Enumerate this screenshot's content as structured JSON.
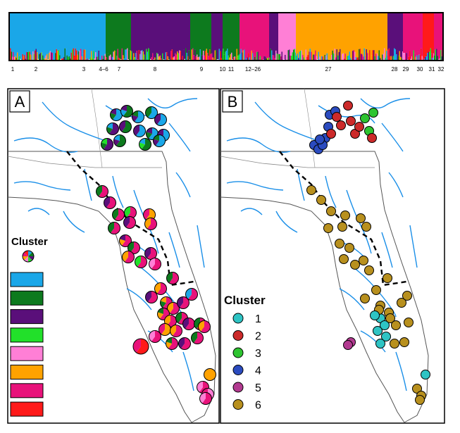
{
  "structure_bar": {
    "population_labels": [
      "1",
      "2",
      "3",
      "4–6",
      "7",
      "8",
      "9",
      "10",
      "11",
      "12–26",
      "27",
      "28",
      "29",
      "30",
      "31",
      "32"
    ]
  },
  "panels": [
    {
      "letter": "A",
      "legend_title": "Cluster"
    },
    {
      "letter": "B",
      "legend_title": "Cluster"
    }
  ],
  "clusters": [
    {
      "id": "1",
      "color_a": "#1aa7e8",
      "color_b": "#2ec4c4"
    },
    {
      "id": "2",
      "color_a": "#0d7a1e",
      "color_b": "#cc2a2a"
    },
    {
      "id": "3",
      "color_a": "#5a0f7a",
      "color_b": "#2ec430"
    },
    {
      "id": "4",
      "color_a": "#22e02a",
      "color_b": "#2b4bbf"
    },
    {
      "id": "5",
      "color_a": "#ff7fd6",
      "color_b": "#b23a90"
    },
    {
      "id": "6",
      "color_a": "#ffa200",
      "color_b": "#b8901e"
    },
    {
      "id": "7",
      "color_a": "#e8127a",
      "color_b": null
    },
    {
      "id": "8",
      "color_a": "#ff1a1a",
      "color_b": null
    }
  ],
  "colors": {
    "river": "#1a8fe8",
    "boundary": "#888888",
    "coast": "#555555"
  }
}
